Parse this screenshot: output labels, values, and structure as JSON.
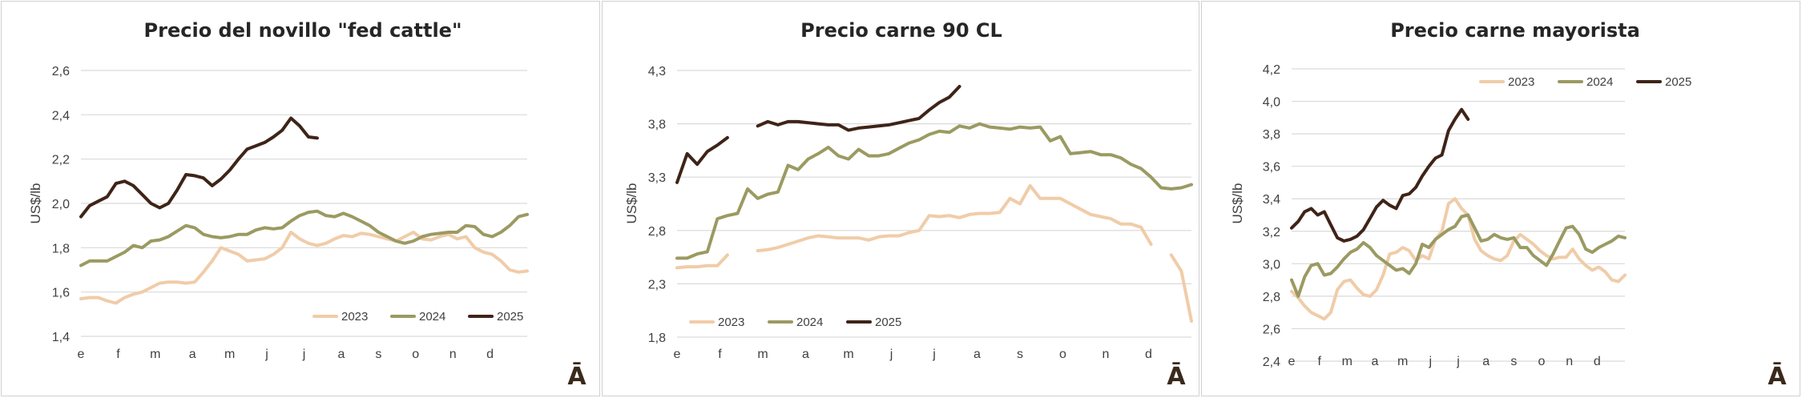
{
  "months": [
    "e",
    "f",
    "m",
    "a",
    "m",
    "j",
    "j",
    "a",
    "s",
    "o",
    "n",
    "d"
  ],
  "legend_labels": [
    "2023",
    "2024",
    "2025"
  ],
  "series_colors": {
    "2023": "#f0cca8",
    "2024": "#9b9a62",
    "2025": "#3e2418"
  },
  "corner_mark": "Ā",
  "charts": [
    {
      "title": "Precio del novillo \"fed cattle\"",
      "ylabel": "US$/lb",
      "ylim": [
        1.4,
        2.6
      ],
      "yticks": [
        "1,4",
        "1,6",
        "1,8",
        "2,0",
        "2,2",
        "2,4",
        "2,6"
      ],
      "legend_position": "bottom-right",
      "chart_data": {
        "type": "line",
        "x": "weekly (52 weeks), labelled by month",
        "series": [
          {
            "name": "2023",
            "values": [
              1.57,
              1.575,
              1.575,
              1.56,
              1.55,
              1.575,
              1.59,
              1.6,
              1.62,
              1.64,
              1.645,
              1.645,
              1.64,
              1.645,
              1.69,
              1.74,
              1.8,
              1.785,
              1.77,
              1.74,
              1.745,
              1.75,
              1.77,
              1.8,
              1.87,
              1.84,
              1.82,
              1.81,
              1.82,
              1.84,
              1.855,
              1.85,
              1.865,
              1.86,
              1.85,
              1.84,
              1.83,
              1.85,
              1.87,
              1.84,
              1.835,
              1.85,
              1.86,
              1.84,
              1.85,
              1.8,
              1.78,
              1.77,
              1.74,
              1.7,
              1.69,
              1.695
            ]
          },
          {
            "name": "2024",
            "values": [
              1.72,
              1.74,
              1.74,
              1.74,
              1.76,
              1.78,
              1.81,
              1.8,
              1.83,
              1.835,
              1.85,
              1.875,
              1.9,
              1.89,
              1.86,
              1.85,
              1.845,
              1.85,
              1.86,
              1.86,
              1.88,
              1.89,
              1.885,
              1.89,
              1.92,
              1.945,
              1.96,
              1.965,
              1.945,
              1.94,
              1.955,
              1.94,
              1.92,
              1.9,
              1.87,
              1.85,
              1.83,
              1.82,
              1.83,
              1.85,
              1.86,
              1.865,
              1.87,
              1.87,
              1.9,
              1.895,
              1.86,
              1.85,
              1.87,
              1.9,
              1.94,
              1.95
            ]
          },
          {
            "name": "2025",
            "values": [
              1.94,
              1.99,
              2.01,
              2.03,
              2.09,
              2.1,
              2.08,
              2.04,
              2.0,
              1.98,
              2.0,
              2.06,
              2.13,
              2.125,
              2.115,
              2.08,
              2.11,
              2.15,
              2.2,
              2.245,
              2.26,
              2.275,
              2.3,
              2.33,
              2.385,
              2.35,
              2.3,
              2.295
            ]
          }
        ]
      }
    },
    {
      "title": "Precio carne 90 CL",
      "ylabel": "US$/lb",
      "ylim": [
        1.8,
        4.3
      ],
      "yticks": [
        "1,8",
        "2,3",
        "2,8",
        "3,3",
        "3,8",
        "4,3"
      ],
      "legend_position": "bottom-left",
      "chart_data": {
        "type": "line",
        "x": "weekly (52 weeks), labelled by month",
        "series": [
          {
            "name": "2023",
            "values": [
              2.45,
              2.46,
              2.46,
              2.47,
              2.47,
              2.57,
              null,
              null,
              2.61,
              2.62,
              2.64,
              2.67,
              2.7,
              2.73,
              2.75,
              2.74,
              2.73,
              2.73,
              2.73,
              2.71,
              2.74,
              2.75,
              2.75,
              2.78,
              2.8,
              2.94,
              2.93,
              2.94,
              2.92,
              2.95,
              2.96,
              2.96,
              2.97,
              3.1,
              3.05,
              3.22,
              3.1,
              3.1,
              3.1,
              3.05,
              3.0,
              2.95,
              2.93,
              2.91,
              2.86,
              2.86,
              2.83,
              2.67,
              null,
              2.57,
              2.42,
              1.95
            ]
          },
          {
            "name": "2024",
            "values": [
              2.54,
              2.54,
              2.58,
              2.6,
              2.91,
              2.94,
              2.96,
              3.19,
              3.1,
              3.14,
              3.16,
              3.41,
              3.37,
              3.47,
              3.52,
              3.58,
              3.5,
              3.47,
              3.56,
              3.5,
              3.5,
              3.52,
              3.57,
              3.62,
              3.65,
              3.7,
              3.73,
              3.72,
              3.78,
              3.76,
              3.8,
              3.77,
              3.76,
              3.75,
              3.77,
              3.76,
              3.77,
              3.64,
              3.68,
              3.52,
              3.53,
              3.54,
              3.51,
              3.51,
              3.48,
              3.42,
              3.38,
              3.3,
              3.2,
              3.19,
              3.2,
              3.23
            ]
          },
          {
            "name": "2025",
            "values": [
              3.25,
              3.52,
              3.42,
              3.54,
              3.6,
              3.67,
              null,
              null,
              3.78,
              3.82,
              3.79,
              3.82,
              3.82,
              3.81,
              3.8,
              3.79,
              3.79,
              3.74,
              3.76,
              3.77,
              3.78,
              3.79,
              3.81,
              3.83,
              3.85,
              3.93,
              4.0,
              4.05,
              4.15
            ]
          }
        ]
      }
    },
    {
      "title": "Precio carne mayorista",
      "ylabel": "US$/lb",
      "ylim": [
        2.4,
        4.2
      ],
      "yticks": [
        "2,4",
        "2,6",
        "2,8",
        "3,0",
        "3,2",
        "3,4",
        "3,6",
        "3,8",
        "4,0",
        "4,2"
      ],
      "legend_position": "top-right",
      "chart_data": {
        "type": "line",
        "x": "weekly (52 weeks), labelled by month",
        "series": [
          {
            "name": "2023",
            "values": [
              2.83,
              2.79,
              2.74,
              2.7,
              2.68,
              2.66,
              2.7,
              2.84,
              2.89,
              2.9,
              2.85,
              2.81,
              2.8,
              2.84,
              2.93,
              3.06,
              3.07,
              3.1,
              3.08,
              3.02,
              3.05,
              3.03,
              3.15,
              3.2,
              3.37,
              3.4,
              3.34,
              3.3,
              3.15,
              3.08,
              3.05,
              3.03,
              3.02,
              3.05,
              3.14,
              3.18,
              3.15,
              3.12,
              3.08,
              3.05,
              3.03,
              3.04,
              3.04,
              3.09,
              3.03,
              2.99,
              2.96,
              2.98,
              2.95,
              2.9,
              2.89,
              2.93
            ]
          },
          {
            "name": "2024",
            "values": [
              2.9,
              2.8,
              2.92,
              2.99,
              3.0,
              2.93,
              2.94,
              2.98,
              3.03,
              3.07,
              3.09,
              3.13,
              3.1,
              3.05,
              3.02,
              2.99,
              2.96,
              2.97,
              2.94,
              3.0,
              3.12,
              3.1,
              3.15,
              3.18,
              3.21,
              3.23,
              3.29,
              3.3,
              3.22,
              3.14,
              3.15,
              3.18,
              3.16,
              3.15,
              3.16,
              3.1,
              3.1,
              3.05,
              3.02,
              2.99,
              3.06,
              3.14,
              3.22,
              3.23,
              3.18,
              3.09,
              3.07,
              3.1,
              3.12,
              3.14,
              3.17,
              3.16
            ]
          },
          {
            "name": "2025",
            "values": [
              3.22,
              3.26,
              3.32,
              3.34,
              3.3,
              3.32,
              3.24,
              3.16,
              3.14,
              3.15,
              3.17,
              3.21,
              3.28,
              3.35,
              3.39,
              3.36,
              3.34,
              3.42,
              3.43,
              3.47,
              3.54,
              3.6,
              3.65,
              3.67,
              3.82,
              3.89,
              3.95,
              3.89
            ]
          }
        ]
      }
    }
  ]
}
